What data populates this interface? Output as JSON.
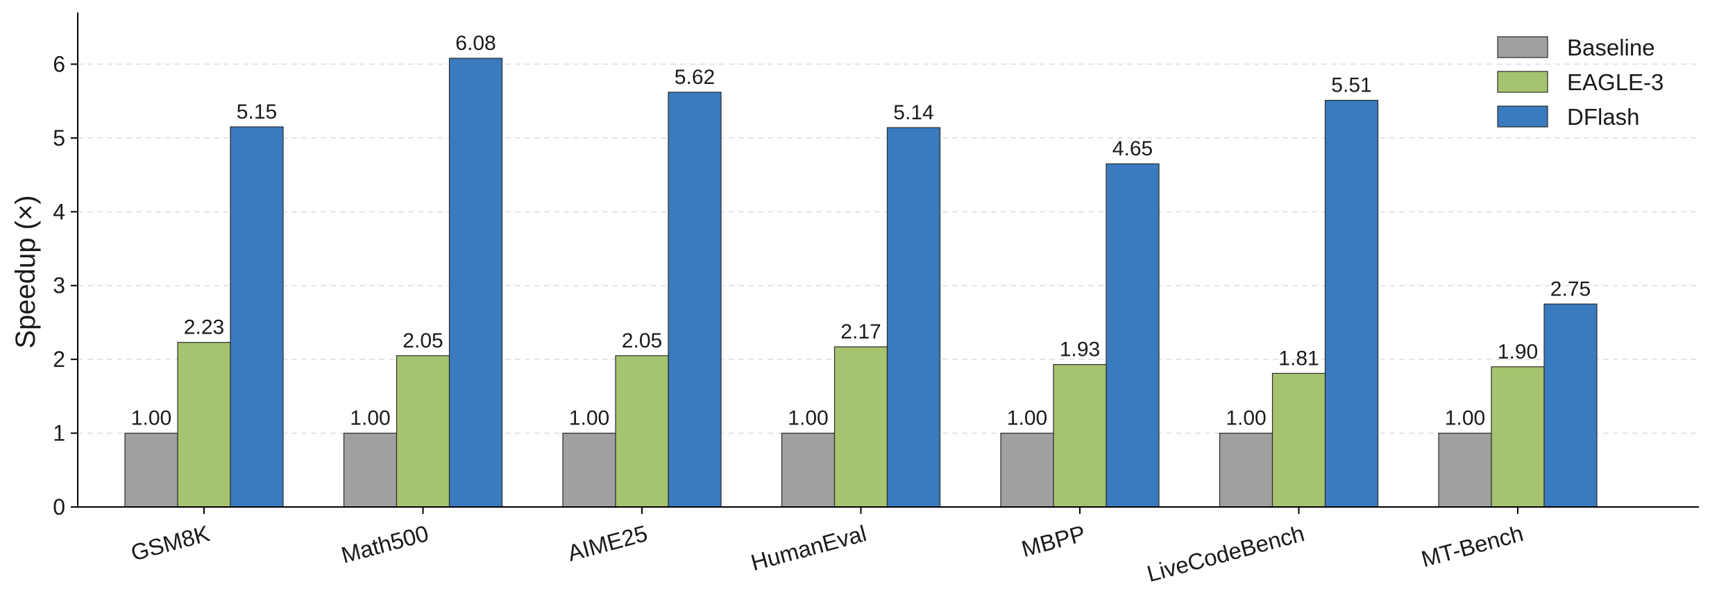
{
  "chart_data": {
    "type": "bar",
    "title": "",
    "xlabel": "",
    "ylabel": "Speedup (×)",
    "ylim": [
      0,
      6.7
    ],
    "yticks": [
      "0",
      "1",
      "2",
      "3",
      "4",
      "5",
      "6"
    ],
    "grid": "horizontal dashed",
    "legend_position": "top-right",
    "categories": [
      "GSM8K",
      "Math500",
      "AIME25",
      "HumanEval",
      "MBPP",
      "LiveCodeBench",
      "MT-Bench"
    ],
    "series": [
      {
        "name": "Baseline",
        "color": "#a0a0a0",
        "values": [
          1.0,
          1.0,
          1.0,
          1.0,
          1.0,
          1.0,
          1.0
        ],
        "labels": [
          "1.00",
          "1.00",
          "1.00",
          "1.00",
          "1.00",
          "1.00",
          "1.00"
        ]
      },
      {
        "name": "EAGLE-3",
        "color": "#a6c36f",
        "values": [
          2.23,
          2.05,
          2.05,
          2.17,
          1.93,
          1.81,
          1.9
        ],
        "labels": [
          "2.23",
          "2.05",
          "2.05",
          "2.17",
          "1.93",
          "1.81",
          "1.90"
        ]
      },
      {
        "name": "DFlash",
        "color": "#3a7abf",
        "values": [
          5.15,
          6.08,
          5.62,
          5.14,
          4.65,
          5.51,
          2.75
        ],
        "labels": [
          "5.15",
          "6.08",
          "5.62",
          "5.14",
          "4.65",
          "5.51",
          "2.75"
        ]
      }
    ]
  }
}
